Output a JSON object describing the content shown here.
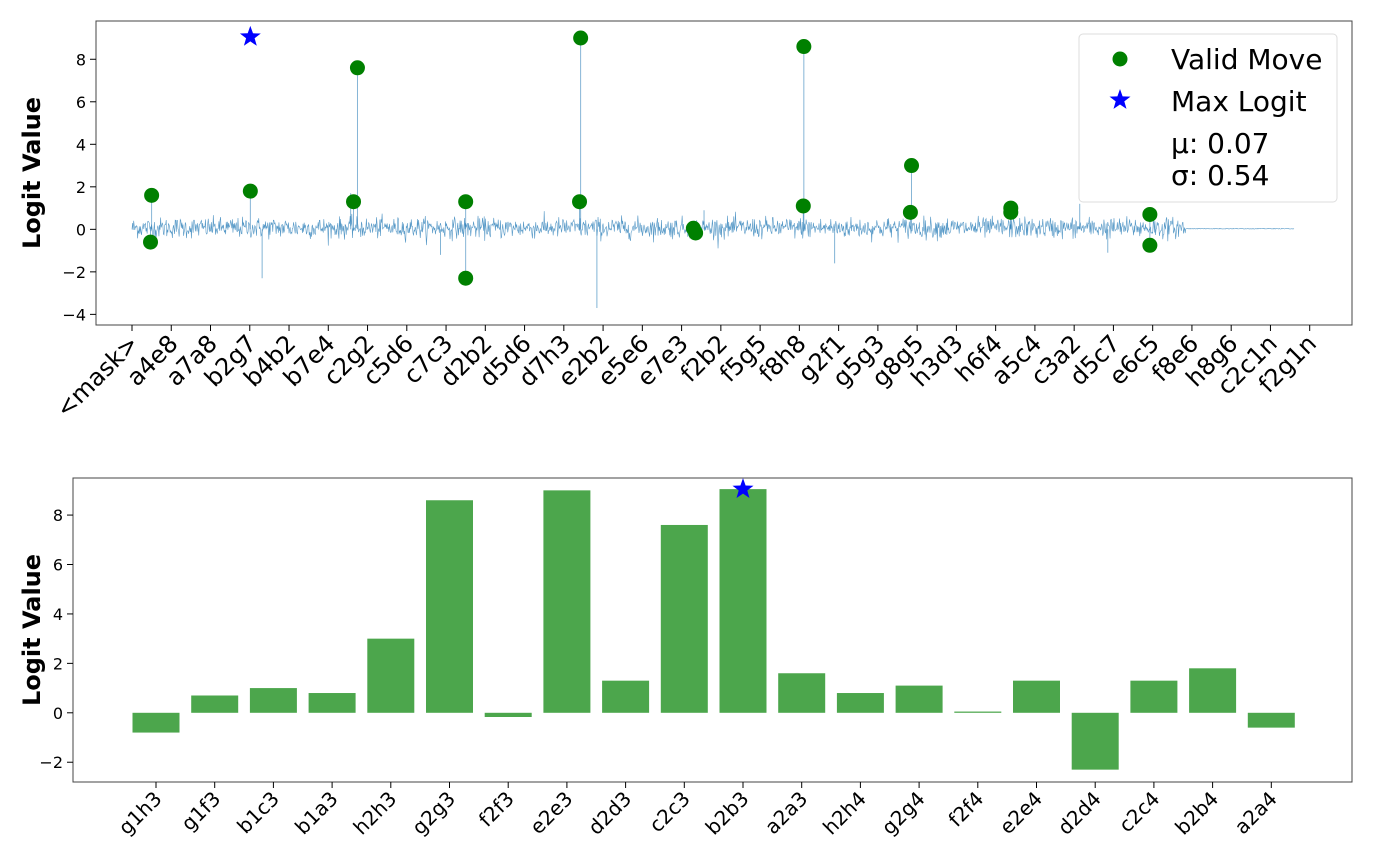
{
  "chart_data": [
    {
      "type": "line",
      "ylabel": "Logit Value",
      "ylim": [
        -4.5,
        9.8
      ],
      "yticks": [
        -4,
        -2,
        0,
        2,
        4,
        6,
        8
      ],
      "tick_labels": [
        "<mask>",
        "a4e8",
        "a7a8",
        "b2g7",
        "b4b2",
        "b7e4",
        "c2g2",
        "c5d6",
        "c7c3",
        "d2b2",
        "d5d6",
        "d7h3",
        "e2b2",
        "e5e6",
        "e7e3",
        "f2b2",
        "f5g5",
        "f8h8",
        "g2f1",
        "g5g3",
        "g8g5",
        "h3d3",
        "h6f4",
        "a5c4",
        "c3a2",
        "d5c7",
        "e6c5",
        "f8e6",
        "h8g6",
        "c2c1n",
        "f2g1n"
      ],
      "tick_spacing": 70,
      "vocab_size": 2073,
      "noise_active_until": 1880,
      "noise_std": 0.24,
      "series": [
        {
          "name": "Valid Move",
          "color": "#008000",
          "points": [
            {
              "x": 35,
              "y": 1.6
            },
            {
              "x": 33,
              "y": -0.6
            },
            {
              "x": 211,
              "y": 1.8
            },
            {
              "x": 395,
              "y": 1.3
            },
            {
              "x": 402,
              "y": 7.6
            },
            {
              "x": 595,
              "y": 1.3
            },
            {
              "x": 595,
              "y": -2.3
            },
            {
              "x": 800,
              "y": 9.0
            },
            {
              "x": 798,
              "y": 1.3
            },
            {
              "x": 1001,
              "y": 0.05
            },
            {
              "x": 1005,
              "y": -0.17
            },
            {
              "x": 1198,
              "y": 8.6
            },
            {
              "x": 1197,
              "y": 1.1
            },
            {
              "x": 1390,
              "y": 3.0
            },
            {
              "x": 1388,
              "y": 0.8
            },
            {
              "x": 1567,
              "y": 1.0
            },
            {
              "x": 1567,
              "y": 0.8
            },
            {
              "x": 1815,
              "y": 0.7
            },
            {
              "x": 1815,
              "y": -0.75
            }
          ]
        },
        {
          "name": "Max Logit",
          "color": "#0000ff",
          "points": [
            {
              "x": 211,
              "y": 9.05
            }
          ]
        }
      ],
      "legend": {
        "position": "top-right",
        "entries": [
          "Valid Move",
          "Max Logit"
        ],
        "stats": [
          "μ: 0.07",
          "σ: 0.54"
        ]
      }
    },
    {
      "type": "bar",
      "ylabel": "Logit Value",
      "ylim": [
        -2.8,
        9.5
      ],
      "yticks": [
        -2,
        0,
        2,
        4,
        6,
        8
      ],
      "color": "#4ca64c",
      "categories": [
        "g1h3",
        "g1f3",
        "b1c3",
        "b1a3",
        "h2h3",
        "g2g3",
        "f2f3",
        "e2e3",
        "d2d3",
        "c2c3",
        "b2b3",
        "a2a3",
        "h2h4",
        "g2g4",
        "f2f4",
        "e2e4",
        "d2d4",
        "c2c4",
        "b2b4",
        "a2a4"
      ],
      "values": [
        -0.8,
        0.7,
        1.0,
        0.8,
        3.0,
        8.6,
        -0.17,
        9.0,
        1.3,
        7.6,
        9.05,
        1.6,
        0.8,
        1.1,
        0.05,
        1.3,
        -2.3,
        1.3,
        1.8,
        -0.6
      ],
      "max_marker": {
        "category": "b2b3",
        "value": 9.05,
        "color": "#0000ff"
      }
    }
  ]
}
